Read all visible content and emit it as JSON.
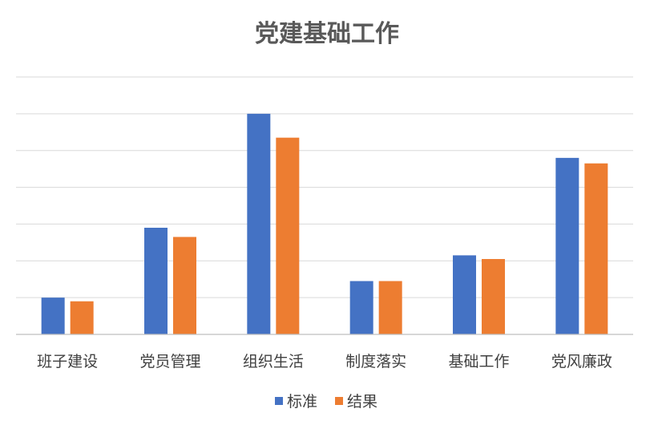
{
  "chart_data": {
    "type": "bar",
    "title": "党建基础工作",
    "categories": [
      "班子建设",
      "党员管理",
      "组织生活",
      "制度落实",
      "基础工作",
      "党风廉政"
    ],
    "series": [
      {
        "name": "标准",
        "color": "#4472C4",
        "values": [
          1.0,
          2.9,
          6.0,
          1.45,
          2.15,
          4.8
        ]
      },
      {
        "name": "结果",
        "color": "#ED7D31",
        "values": [
          0.9,
          2.65,
          5.35,
          1.45,
          2.05,
          4.65
        ]
      }
    ],
    "ylim": [
      0,
      7
    ],
    "grid": true,
    "y_ticks_visible": false,
    "legend": "bottom-center"
  }
}
